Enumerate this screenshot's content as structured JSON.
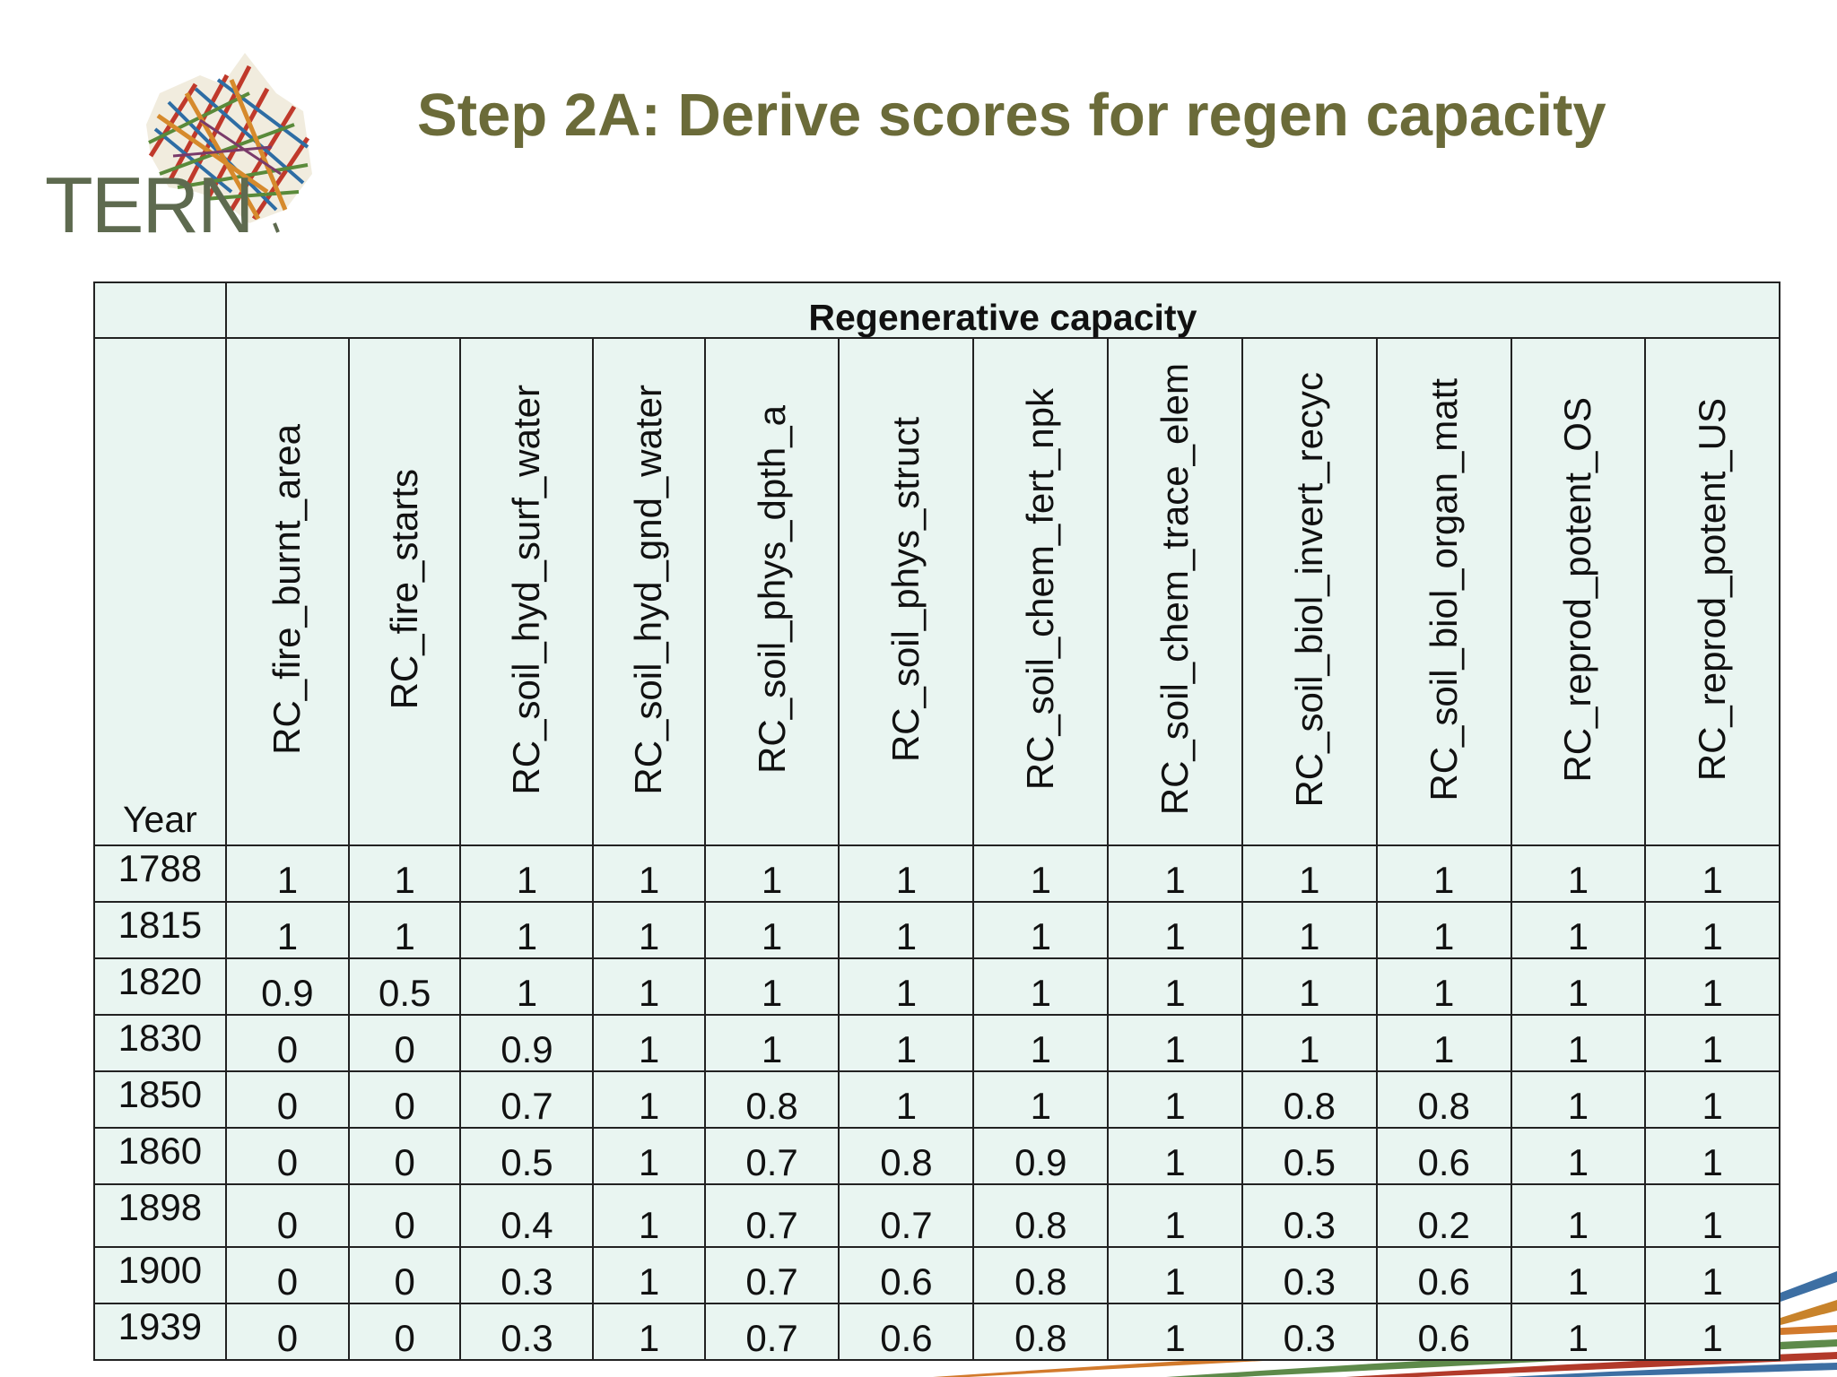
{
  "logo": {
    "text": "TERN",
    "icon": "australia-map-logo-icon"
  },
  "title": "Step 2A: Derive scores for regen capacity",
  "table": {
    "group_header": "Regenerative capacity",
    "year_header": "Year",
    "columns": [
      "RC_fire_burnt_area",
      "RC_fire_starts",
      "RC_soil_hyd_surf_water",
      "RC_soil_hyd_gnd_water",
      "RC_soil_phys_dpth_a",
      "RC_soil_phys_struct",
      "RC_soil_chem_fert_npk",
      "RC_soil_chem_trace_elem",
      "RC_soil_biol_invert_recyc",
      "RC_soil_biol_organ_matt",
      "RC_reprod_potent_OS",
      "RC_reprod_potent_US"
    ],
    "rows": [
      {
        "year": "1788",
        "values": [
          "1",
          "1",
          "1",
          "1",
          "1",
          "1",
          "1",
          "1",
          "1",
          "1",
          "1",
          "1"
        ]
      },
      {
        "year": "1815",
        "values": [
          "1",
          "1",
          "1",
          "1",
          "1",
          "1",
          "1",
          "1",
          "1",
          "1",
          "1",
          "1"
        ]
      },
      {
        "year": "1820",
        "values": [
          "0.9",
          "0.5",
          "1",
          "1",
          "1",
          "1",
          "1",
          "1",
          "1",
          "1",
          "1",
          "1"
        ]
      },
      {
        "year": "1830",
        "values": [
          "0",
          "0",
          "0.9",
          "1",
          "1",
          "1",
          "1",
          "1",
          "1",
          "1",
          "1",
          "1"
        ]
      },
      {
        "year": "1850",
        "values": [
          "0",
          "0",
          "0.7",
          "1",
          "0.8",
          "1",
          "1",
          "1",
          "0.8",
          "0.8",
          "1",
          "1"
        ]
      },
      {
        "year": "1860",
        "values": [
          "0",
          "0",
          "0.5",
          "1",
          "0.7",
          "0.8",
          "0.9",
          "1",
          "0.5",
          "0.6",
          "1",
          "1"
        ]
      },
      {
        "year": "1898",
        "values": [
          "0",
          "0",
          "0.4",
          "1",
          "0.7",
          "0.7",
          "0.8",
          "1",
          "0.3",
          "0.2",
          "1",
          "1"
        ]
      },
      {
        "year": "1900",
        "values": [
          "0",
          "0",
          "0.3",
          "1",
          "0.7",
          "0.6",
          "0.8",
          "1",
          "0.3",
          "0.6",
          "1",
          "1"
        ]
      },
      {
        "year": "1939",
        "values": [
          "0",
          "0",
          "0.3",
          "1",
          "0.7",
          "0.6",
          "0.8",
          "1",
          "0.3",
          "0.6",
          "1",
          "1"
        ]
      }
    ]
  },
  "colors": {
    "title": "#6b6b39",
    "table_fill": "#e9f5f1",
    "border": "#222222",
    "logo_text": "#5e6a4f"
  }
}
